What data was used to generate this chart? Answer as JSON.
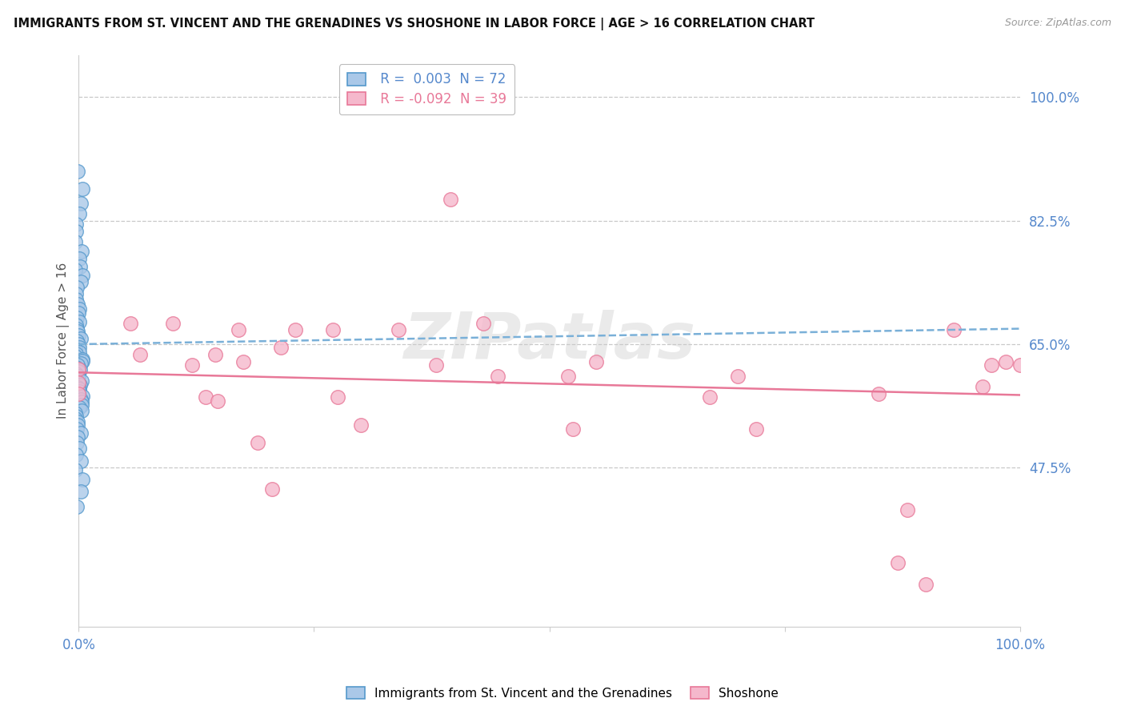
{
  "title": "IMMIGRANTS FROM ST. VINCENT AND THE GRENADINES VS SHOSHONE IN LABOR FORCE | AGE > 16 CORRELATION CHART",
  "source": "Source: ZipAtlas.com",
  "ylabel": "In Labor Force | Age > 16",
  "xlim": [
    0.0,
    1.0
  ],
  "ylim": [
    0.25,
    1.06
  ],
  "yticks": [
    0.475,
    0.65,
    0.825,
    1.0
  ],
  "ytick_labels": [
    "47.5%",
    "65.0%",
    "82.5%",
    "100.0%"
  ],
  "xticks": [
    0.0,
    0.25,
    0.5,
    0.75,
    1.0
  ],
  "xtick_labels": [
    "0.0%",
    "",
    "",
    "",
    "100.0%"
  ],
  "blue_R": 0.003,
  "blue_N": 72,
  "pink_R": -0.092,
  "pink_N": 39,
  "blue_label": "Immigrants from St. Vincent and the Grenadines",
  "pink_label": "Shoshone",
  "blue_color": "#aac8e8",
  "blue_edge": "#5599cc",
  "pink_color": "#f5b8cc",
  "pink_edge": "#e87898",
  "blue_line_color": "#7ab0d8",
  "pink_line_color": "#e87898",
  "watermark": "ZIPatlas",
  "blue_trend_start": 0.65,
  "blue_trend_end": 0.672,
  "pink_trend_start": 0.61,
  "pink_trend_end": 0.578,
  "blue_x": [
    0.0,
    0.0,
    0.0,
    0.0,
    0.0,
    0.0,
    0.0,
    0.0,
    0.0,
    0.0,
    0.0,
    0.0,
    0.0,
    0.0,
    0.0,
    0.0,
    0.0,
    0.0,
    0.0,
    0.0,
    0.0,
    0.0,
    0.0,
    0.0,
    0.0,
    0.0,
    0.0,
    0.0,
    0.0,
    0.0,
    0.0,
    0.0,
    0.0,
    0.0,
    0.0,
    0.0,
    0.0,
    0.0,
    0.0,
    0.0,
    0.0,
    0.0,
    0.0,
    0.0,
    0.0,
    0.0,
    0.0,
    0.0,
    0.0,
    0.0,
    0.0,
    0.0,
    0.0,
    0.0,
    0.0,
    0.0,
    0.0,
    0.0,
    0.0,
    0.0,
    0.0,
    0.0,
    0.0,
    0.0,
    0.0,
    0.0,
    0.0,
    0.0,
    0.0,
    0.0,
    0.0,
    0.0
  ],
  "blue_y": [
    0.895,
    0.87,
    0.85,
    0.835,
    0.82,
    0.81,
    0.795,
    0.782,
    0.771,
    0.76,
    0.755,
    0.747,
    0.738,
    0.73,
    0.722,
    0.714,
    0.707,
    0.7,
    0.694,
    0.688,
    0.682,
    0.677,
    0.672,
    0.668,
    0.663,
    0.658,
    0.654,
    0.65,
    0.646,
    0.643,
    0.639,
    0.636,
    0.633,
    0.629,
    0.626,
    0.623,
    0.62,
    0.617,
    0.614,
    0.611,
    0.608,
    0.605,
    0.601,
    0.598,
    0.595,
    0.592,
    0.589,
    0.586,
    0.583,
    0.58,
    0.576,
    0.572,
    0.568,
    0.564,
    0.56,
    0.556,
    0.552,
    0.548,
    0.544,
    0.54,
    0.535,
    0.53,
    0.524,
    0.518,
    0.511,
    0.503,
    0.494,
    0.484,
    0.472,
    0.458,
    0.441,
    0.42
  ],
  "pink_x": [
    0.0,
    0.0,
    0.0,
    0.055,
    0.065,
    0.1,
    0.12,
    0.135,
    0.145,
    0.148,
    0.17,
    0.175,
    0.19,
    0.205,
    0.215,
    0.23,
    0.27,
    0.275,
    0.3,
    0.34,
    0.38,
    0.395,
    0.43,
    0.445,
    0.52,
    0.525,
    0.55,
    0.67,
    0.7,
    0.72,
    0.85,
    0.87,
    0.88,
    0.9,
    0.93,
    0.96,
    0.97,
    0.985,
    1.0
  ],
  "pink_y": [
    0.615,
    0.595,
    0.58,
    0.68,
    0.635,
    0.68,
    0.62,
    0.575,
    0.635,
    0.57,
    0.67,
    0.625,
    0.51,
    0.445,
    0.645,
    0.67,
    0.67,
    0.575,
    0.535,
    0.67,
    0.62,
    0.855,
    0.68,
    0.605,
    0.605,
    0.53,
    0.625,
    0.575,
    0.605,
    0.53,
    0.58,
    0.34,
    0.415,
    0.31,
    0.67,
    0.59,
    0.62,
    0.625,
    0.62
  ]
}
